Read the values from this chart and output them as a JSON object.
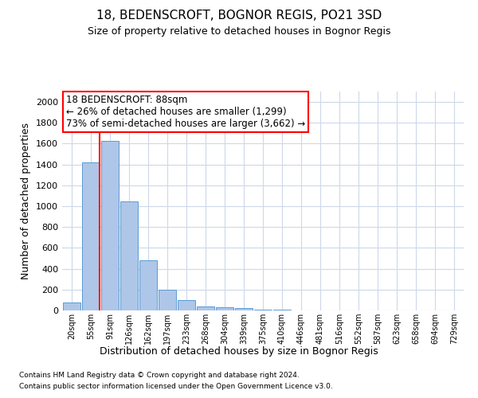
{
  "title1": "18, BEDENSCROFT, BOGNOR REGIS, PO21 3SD",
  "title2": "Size of property relative to detached houses in Bognor Regis",
  "xlabel": "Distribution of detached houses by size in Bognor Regis",
  "ylabel": "Number of detached properties",
  "footer1": "Contains HM Land Registry data © Crown copyright and database right 2024.",
  "footer2": "Contains public sector information licensed under the Open Government Licence v3.0.",
  "bins": [
    "20sqm",
    "55sqm",
    "91sqm",
    "126sqm",
    "162sqm",
    "197sqm",
    "233sqm",
    "268sqm",
    "304sqm",
    "339sqm",
    "375sqm",
    "410sqm",
    "446sqm",
    "481sqm",
    "516sqm",
    "552sqm",
    "587sqm",
    "623sqm",
    "658sqm",
    "694sqm",
    "729sqm"
  ],
  "values": [
    80,
    1420,
    1630,
    1050,
    480,
    200,
    100,
    40,
    30,
    20,
    10,
    5,
    3,
    2,
    1,
    1,
    0,
    0,
    0,
    0,
    0
  ],
  "bar_color": "#aec6e8",
  "bar_edge_color": "#5a9bd5",
  "property_line_color": "red",
  "annotation_text": "18 BEDENSCROFT: 88sqm\n← 26% of detached houses are smaller (1,299)\n73% of semi-detached houses are larger (3,662) →",
  "annotation_box_color": "white",
  "annotation_box_edge_color": "red",
  "ylim": [
    0,
    2100
  ],
  "yticks": [
    0,
    200,
    400,
    600,
    800,
    1000,
    1200,
    1400,
    1600,
    1800,
    2000
  ],
  "grid_color": "#cdd8ea",
  "background_color": "white",
  "title1_fontsize": 11,
  "title2_fontsize": 9,
  "xlabel_fontsize": 9,
  "ylabel_fontsize": 9,
  "tick_fontsize": 8,
  "xtick_fontsize": 7,
  "annotation_fontsize": 8.5,
  "footer_fontsize": 6.5
}
